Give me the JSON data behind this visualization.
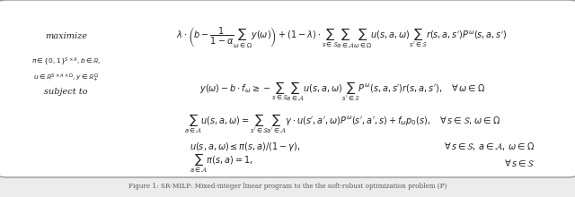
{
  "title": "Figure 1: SR-MILP: Mixed-integer linear program to the the soft-robust optimization problem (P)",
  "background_color": "#ececec",
  "box_color": "#ffffff",
  "border_color": "#999999",
  "text_color": "#222222",
  "caption_color": "#555555",
  "figsize": [
    6.4,
    2.2
  ],
  "dpi": 100,
  "maximize_label": "maximize",
  "sub1": "$\\pi\\in\\{0,1\\}^{S\\times A}, b\\in\\mathbb{R},$",
  "sub2": "$u\\in\\mathbb{R}^{S\\times A\\times\\Omega}, y\\in\\mathbb{R}_{+}^{\\Omega}$",
  "subject_to": "subject to",
  "obj": "$\\lambda\\cdot\\left(b - \\dfrac{1}{1-\\alpha}\\sum_{\\omega\\in\\Omega}y(\\omega)\\right) + (1-\\lambda)\\cdot\\sum_{s\\in\\mathcal{S}}\\sum_{a\\in\\mathcal{A}}\\sum_{\\omega\\in\\Omega}u(s,a,\\omega)\\sum_{s^{\\prime}\\in\\mathcal{S}}r(s,a,s^{\\prime})P^{\\omega}(s,a,s^{\\prime})$",
  "c1": "$y(\\omega) - b\\cdot f_{\\omega} \\geq -\\sum_{s\\in\\mathcal{S}}\\sum_{a\\in\\mathcal{A}}u(s,a,\\omega)\\sum_{s^{\\prime}\\in\\mathcal{S}}P^{\\omega}(s,a,s^{\\prime})r(s,a,s^{\\prime}),\\quad\\forall\\,\\omega\\in\\Omega$",
  "c2": "$\\sum_{a\\in\\mathcal{A}}u(s,a,\\omega) = \\sum_{s^{\\prime}\\in\\mathcal{S}}\\sum_{a^{\\prime}\\in\\mathcal{A}}\\gamma\\cdot u(s^{\\prime},a^{\\prime},\\omega)P^{\\omega}(s^{\\prime},a^{\\prime},s) + f_{\\omega}p_{0}(s),\\quad\\forall\\,s\\in\\mathcal{S},\\,\\omega\\in\\Omega$",
  "c3l": "$u(s,a,\\omega) \\leq \\pi(s,a)/(1-\\gamma),$",
  "c3r": "$\\forall\\,s\\in\\mathcal{S},\\,a\\in\\mathcal{A},\\,\\omega\\in\\Omega$",
  "c4l": "$\\sum_{a\\in\\mathcal{A}}\\pi(s,a) = 1,$",
  "c4r": "$\\forall\\,s\\in\\mathcal{S}$"
}
